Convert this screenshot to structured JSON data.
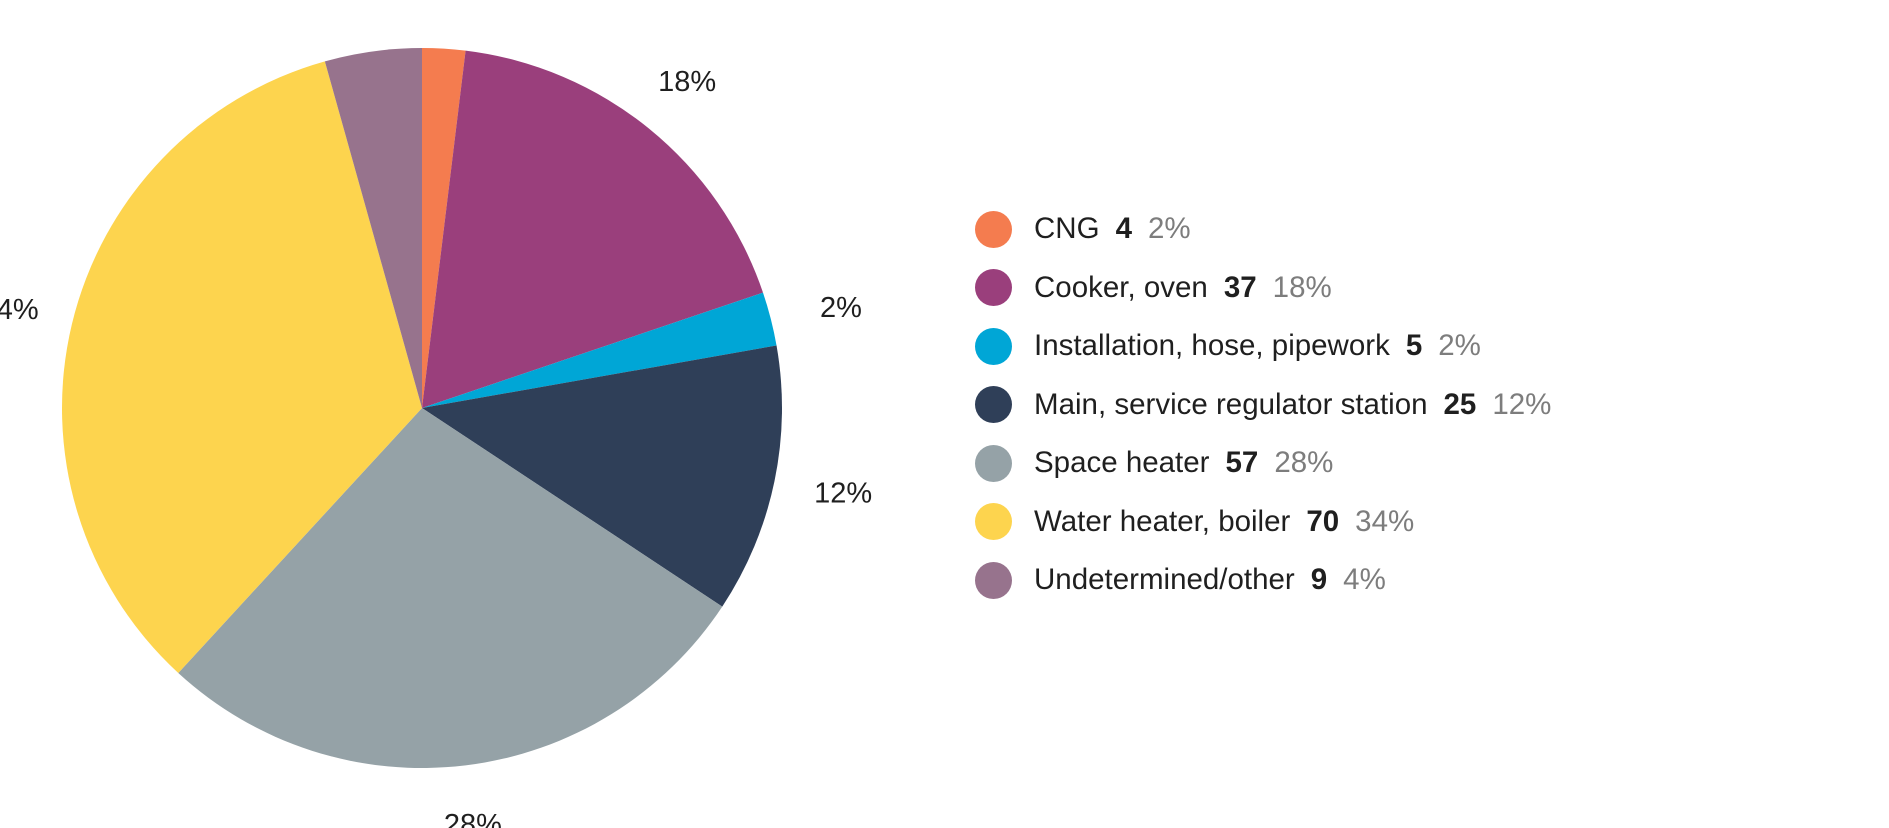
{
  "chart_data": {
    "type": "pie",
    "start_angle_deg": 0,
    "direction": "clockwise",
    "slices": [
      {
        "label": "CNG",
        "count": 4,
        "value": 2,
        "pct_label": "2%",
        "color": "#F47C4F"
      },
      {
        "label": "Cooker, oven",
        "count": 37,
        "value": 18,
        "pct_label": "18%",
        "color": "#9A3F7C"
      },
      {
        "label": "Installation, hose, pipework",
        "count": 5,
        "value": 2,
        "pct_label": "2%",
        "color": "#00A6D6"
      },
      {
        "label": "Main, service regulator station",
        "count": 25,
        "value": 12,
        "pct_label": "12%",
        "color": "#2F3F58"
      },
      {
        "label": "Space heater",
        "count": 57,
        "value": 28,
        "pct_label": "28%",
        "color": "#95A2A7"
      },
      {
        "label": "Water heater, boiler",
        "count": 70,
        "value": 34,
        "pct_label": "34%",
        "color": "#FDD44E"
      },
      {
        "label": "Undetermined/other",
        "count": 9,
        "value": 4,
        "pct_label": "4%",
        "color": "#97738D"
      }
    ],
    "legend_placement": "right"
  }
}
